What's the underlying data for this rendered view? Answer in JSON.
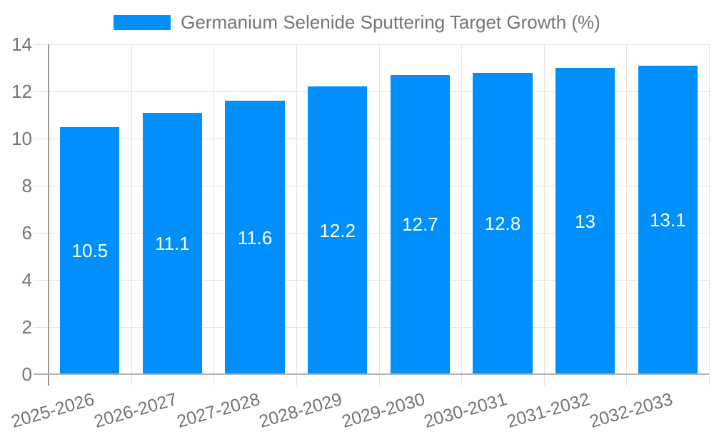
{
  "legend": {
    "label": "Germanium Selenide Sputtering Target Growth (%)"
  },
  "chart_data": {
    "type": "bar",
    "title": "Germanium Selenide Sputtering Target Growth (%)",
    "series_name": "Germanium Selenide Sputtering Target Growth (%)",
    "categories": [
      "2025-2026",
      "2026-2027",
      "2027-2028",
      "2028-2029",
      "2029-2030",
      "2030-2031",
      "2031-2032",
      "2032-2033"
    ],
    "values": [
      10.5,
      11.1,
      11.6,
      12.2,
      12.7,
      12.8,
      13,
      13.1
    ],
    "value_labels": [
      "10.5",
      "11.1",
      "11.6",
      "12.2",
      "12.7",
      "12.8",
      "13",
      "13.1"
    ],
    "xlabel": "",
    "ylabel": "",
    "ylim": [
      0,
      14
    ],
    "ytick_step": 2,
    "ytick_labels": [
      "0",
      "2",
      "4",
      "6",
      "8",
      "10",
      "12",
      "14"
    ],
    "grid": true,
    "legend_position": "top",
    "colors": {
      "bar": "#008FFB",
      "grid_line": "#e4e4e4",
      "axis_line": "#999999",
      "baseline": "#b4b4b4",
      "tick_text": "#757575",
      "legend_text": "#757575",
      "value_label_text": "#ffffff",
      "background": "#ffffff"
    }
  }
}
